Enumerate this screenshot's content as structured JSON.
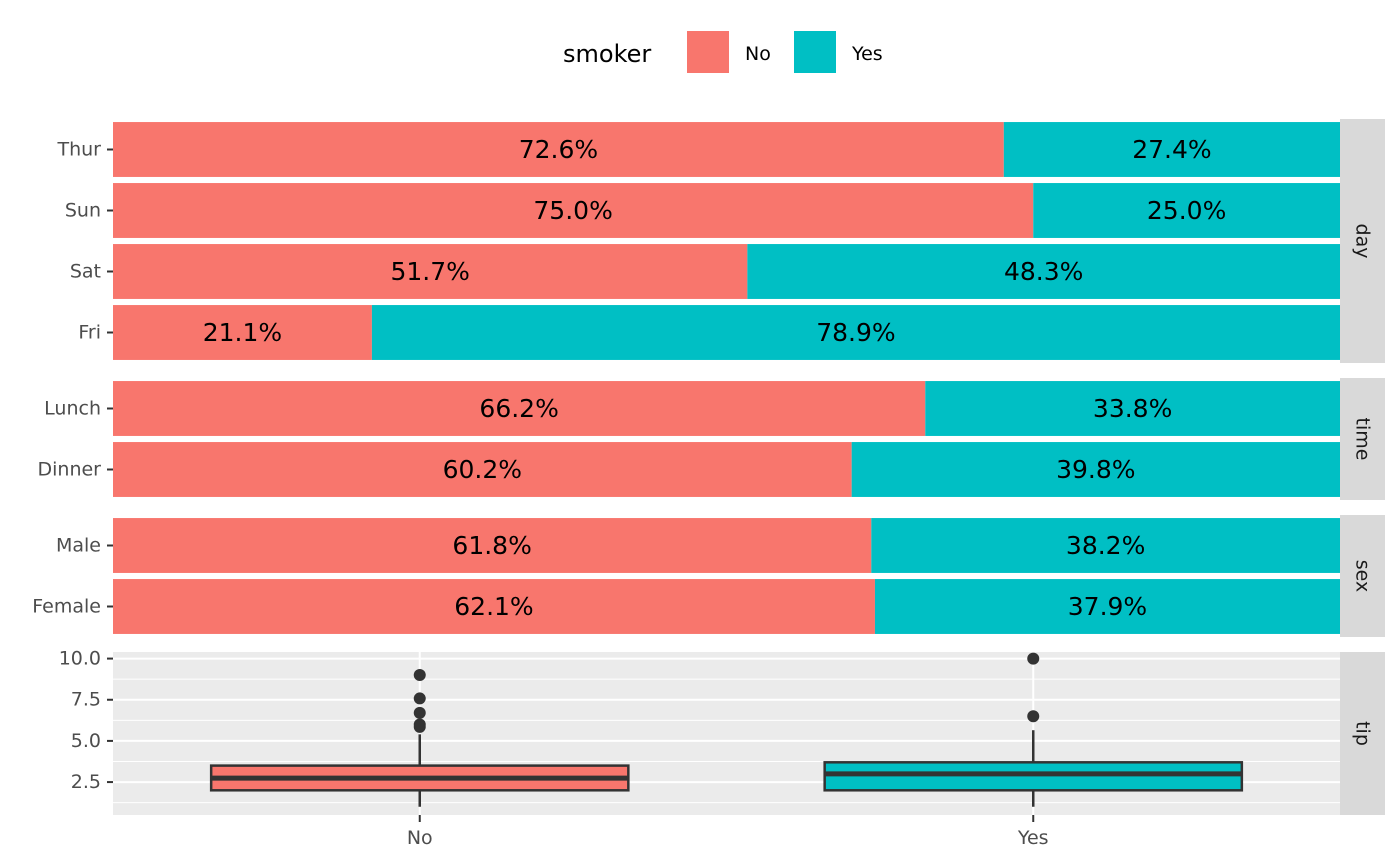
{
  "chart_data": {
    "type": "bar",
    "subtype": "stacked-percent-horizontal with faceted boxplot",
    "legend": {
      "title": "smoker",
      "position": "top",
      "entries": [
        {
          "label": "No",
          "color": "#F8766D"
        },
        {
          "label": "Yes",
          "color": "#00BFC4"
        }
      ]
    },
    "colors": {
      "No": "#F8766D",
      "Yes": "#00BFC4",
      "panel_bg": "#EBEBEB",
      "strip_bg": "#D9D9D9",
      "box_line": "#333333"
    },
    "facets": [
      {
        "strip": "day",
        "categories": [
          "Thur",
          "Sun",
          "Sat",
          "Fri"
        ],
        "series": [
          {
            "name": "No",
            "values": [
              72.6,
              75.0,
              51.7,
              21.1
            ],
            "labels": [
              "72.6%",
              "75.0%",
              "51.7%",
              "21.1%"
            ]
          },
          {
            "name": "Yes",
            "values": [
              27.4,
              25.0,
              48.3,
              78.9
            ],
            "labels": [
              "27.4%",
              "25.0%",
              "48.3%",
              "78.9%"
            ]
          }
        ]
      },
      {
        "strip": "time",
        "categories": [
          "Lunch",
          "Dinner"
        ],
        "series": [
          {
            "name": "No",
            "values": [
              66.2,
              60.2
            ],
            "labels": [
              "66.2%",
              "60.2%"
            ]
          },
          {
            "name": "Yes",
            "values": [
              33.8,
              39.8
            ],
            "labels": [
              "33.8%",
              "39.8%"
            ]
          }
        ]
      },
      {
        "strip": "sex",
        "categories": [
          "Male",
          "Female"
        ],
        "series": [
          {
            "name": "No",
            "values": [
              61.8,
              62.1
            ],
            "labels": [
              "61.8%",
              "62.1%"
            ]
          },
          {
            "name": "Yes",
            "values": [
              38.2,
              37.9
            ],
            "labels": [
              "38.2%",
              "37.9%"
            ]
          }
        ]
      }
    ],
    "boxplot": {
      "strip": "tip",
      "type": "boxplot",
      "x_categories": [
        "No",
        "Yes"
      ],
      "ylim": [
        0.5,
        10.4
      ],
      "yticks": [
        2.5,
        5.0,
        7.5,
        10.0
      ],
      "ytick_labels": [
        "2.5",
        "5.0",
        "7.5",
        "10.0"
      ],
      "grid": true,
      "boxes": [
        {
          "name": "No",
          "q1": 2.0,
          "median": 2.74,
          "q3": 3.5,
          "whisker_low": 1.0,
          "whisker_high": 5.4,
          "outliers": [
            5.85,
            6.0,
            6.7,
            7.58,
            9.0
          ]
        },
        {
          "name": "Yes",
          "q1": 2.0,
          "median": 3.0,
          "q3": 3.7,
          "whisker_low": 1.0,
          "whisker_high": 5.65,
          "outliers": [
            6.5,
            10.0
          ]
        }
      ]
    }
  }
}
